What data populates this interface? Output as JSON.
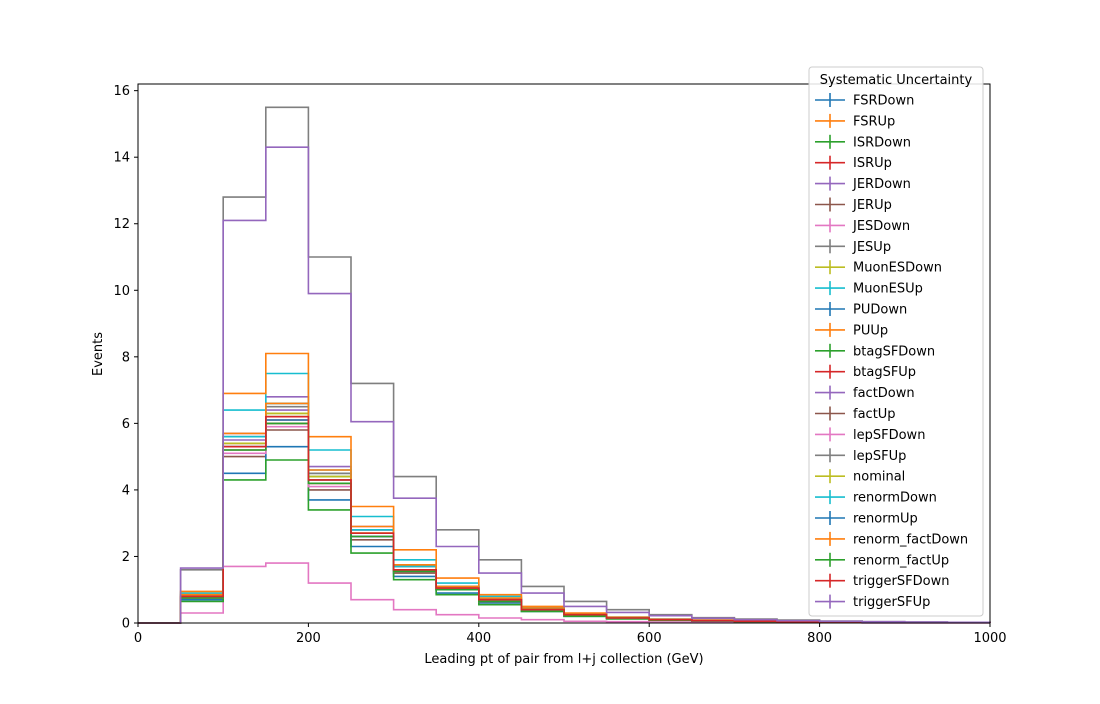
{
  "chart_data": {
    "type": "line",
    "title": "",
    "xlabel": "Leading pt of pair from l+j collection (GeV)",
    "ylabel": "Events",
    "xlim": [
      0,
      1000
    ],
    "ylim": [
      0,
      16.2
    ],
    "xticks": [
      "0",
      "200",
      "400",
      "600",
      "800",
      "1000"
    ],
    "yticks": [
      "0",
      "2",
      "4",
      "6",
      "8",
      "10",
      "12",
      "14",
      "16"
    ],
    "grid": false,
    "legend_title": "Systematic Uncertainty",
    "legend_placement": "upper-right",
    "bin_edges": [
      0,
      50,
      100,
      150,
      200,
      250,
      300,
      350,
      400,
      450,
      500,
      550,
      600,
      650,
      700,
      750,
      800,
      850,
      900,
      950,
      1000
    ],
    "series": [
      {
        "name": "FSRDown",
        "color": "#1f77b4",
        "values": [
          0,
          0.8,
          5.6,
          6.6,
          4.4,
          2.8,
          1.6,
          1.1,
          0.7,
          0.4,
          0.25,
          0.15,
          0.1,
          0.08,
          0.05,
          0.04,
          0.03,
          0.02,
          0.01,
          0.01
        ]
      },
      {
        "name": "FSRUp",
        "color": "#ff7f0e",
        "values": [
          0,
          0.8,
          5.4,
          6.2,
          4.3,
          2.7,
          1.6,
          1.1,
          0.7,
          0.4,
          0.25,
          0.15,
          0.1,
          0.08,
          0.05,
          0.04,
          0.03,
          0.02,
          0.01,
          0.01
        ]
      },
      {
        "name": "ISRDown",
        "color": "#2ca02c",
        "values": [
          0,
          0.75,
          5.3,
          6.2,
          4.5,
          2.6,
          1.6,
          1.0,
          0.7,
          0.4,
          0.25,
          0.15,
          0.1,
          0.07,
          0.05,
          0.04,
          0.03,
          0.02,
          0.01,
          0.01
        ]
      },
      {
        "name": "ISRUp",
        "color": "#d62728",
        "values": [
          0,
          0.8,
          5.4,
          6.0,
          4.2,
          2.6,
          1.6,
          1.0,
          0.7,
          0.4,
          0.25,
          0.15,
          0.1,
          0.07,
          0.05,
          0.04,
          0.03,
          0.02,
          0.01,
          0.01
        ]
      },
      {
        "name": "JERDown",
        "color": "#9467bd",
        "values": [
          0,
          0.85,
          5.7,
          6.8,
          4.7,
          2.9,
          1.7,
          1.1,
          0.7,
          0.45,
          0.25,
          0.15,
          0.1,
          0.08,
          0.05,
          0.04,
          0.03,
          0.02,
          0.01,
          0.01
        ]
      },
      {
        "name": "JERUp",
        "color": "#8c564b",
        "values": [
          0,
          0.75,
          5.0,
          5.8,
          4.0,
          2.5,
          1.5,
          1.0,
          0.65,
          0.4,
          0.25,
          0.15,
          0.1,
          0.07,
          0.05,
          0.04,
          0.03,
          0.02,
          0.01,
          0.01
        ]
      },
      {
        "name": "JESDown",
        "color": "#e377c2",
        "values": [
          0,
          0.3,
          1.7,
          1.8,
          1.2,
          0.7,
          0.4,
          0.25,
          0.15,
          0.1,
          0.05,
          0.04,
          0.03,
          0.02,
          0.01,
          0.01,
          0.01,
          0,
          0,
          0
        ]
      },
      {
        "name": "JESUp",
        "color": "#7f7f7f",
        "values": [
          0,
          1.6,
          12.8,
          15.5,
          11.0,
          7.2,
          4.4,
          2.8,
          1.9,
          1.1,
          0.65,
          0.4,
          0.25,
          0.16,
          0.12,
          0.09,
          0.06,
          0.04,
          0.03,
          0.02
        ]
      },
      {
        "name": "MuonESDown",
        "color": "#bcbd22",
        "values": [
          0,
          0.8,
          5.4,
          6.3,
          4.4,
          2.7,
          1.6,
          1.0,
          0.7,
          0.4,
          0.25,
          0.15,
          0.1,
          0.07,
          0.05,
          0.04,
          0.03,
          0.02,
          0.01,
          0.01
        ]
      },
      {
        "name": "MuonESUp",
        "color": "#17becf",
        "values": [
          0,
          0.9,
          6.4,
          7.5,
          5.2,
          3.2,
          1.9,
          1.2,
          0.8,
          0.45,
          0.28,
          0.17,
          0.11,
          0.08,
          0.06,
          0.04,
          0.03,
          0.02,
          0.01,
          0.01
        ]
      },
      {
        "name": "PUDown",
        "color": "#1f77b4",
        "values": [
          0,
          0.7,
          4.5,
          5.3,
          3.7,
          2.3,
          1.4,
          0.9,
          0.6,
          0.35,
          0.2,
          0.13,
          0.09,
          0.06,
          0.04,
          0.03,
          0.02,
          0.02,
          0.01,
          0.01
        ]
      },
      {
        "name": "PUUp",
        "color": "#ff7f0e",
        "values": [
          0,
          0.95,
          6.9,
          8.1,
          5.6,
          3.5,
          2.2,
          1.35,
          0.85,
          0.5,
          0.3,
          0.18,
          0.12,
          0.09,
          0.06,
          0.05,
          0.03,
          0.02,
          0.02,
          0.01
        ]
      },
      {
        "name": "btagSFDown",
        "color": "#2ca02c",
        "values": [
          0,
          0.65,
          4.3,
          4.9,
          3.4,
          2.1,
          1.3,
          0.85,
          0.55,
          0.35,
          0.2,
          0.12,
          0.08,
          0.06,
          0.04,
          0.03,
          0.02,
          0.02,
          0.01,
          0.01
        ]
      },
      {
        "name": "btagSFUp",
        "color": "#d62728",
        "values": [
          0,
          0.75,
          5.3,
          6.1,
          4.2,
          2.6,
          1.6,
          1.0,
          0.65,
          0.4,
          0.25,
          0.15,
          0.1,
          0.07,
          0.05,
          0.04,
          0.03,
          0.02,
          0.01,
          0.01
        ]
      },
      {
        "name": "factDown",
        "color": "#9467bd",
        "values": [
          0,
          0.8,
          5.5,
          6.4,
          4.5,
          2.8,
          1.7,
          1.05,
          0.7,
          0.4,
          0.25,
          0.15,
          0.1,
          0.07,
          0.05,
          0.04,
          0.03,
          0.02,
          0.01,
          0.01
        ]
      },
      {
        "name": "factUp",
        "color": "#8c564b",
        "values": [
          0,
          0.75,
          5.2,
          6.0,
          4.2,
          2.6,
          1.55,
          1.0,
          0.65,
          0.4,
          0.25,
          0.15,
          0.1,
          0.07,
          0.05,
          0.04,
          0.03,
          0.02,
          0.01,
          0.01
        ]
      },
      {
        "name": "lepSFDown",
        "color": "#e377c2",
        "values": [
          0,
          0.75,
          5.1,
          5.9,
          4.1,
          2.6,
          1.55,
          1.0,
          0.65,
          0.4,
          0.25,
          0.15,
          0.1,
          0.07,
          0.05,
          0.04,
          0.03,
          0.02,
          0.01,
          0.01
        ]
      },
      {
        "name": "lepSFUp",
        "color": "#7f7f7f",
        "values": [
          0,
          0.8,
          5.6,
          6.5,
          4.5,
          2.8,
          1.7,
          1.1,
          0.7,
          0.45,
          0.27,
          0.16,
          0.1,
          0.08,
          0.05,
          0.04,
          0.03,
          0.02,
          0.01,
          0.01
        ]
      },
      {
        "name": "nominal",
        "color": "#bcbd22",
        "values": [
          0,
          0.8,
          5.4,
          6.3,
          4.4,
          2.7,
          1.6,
          1.05,
          0.7,
          0.4,
          0.25,
          0.15,
          0.1,
          0.07,
          0.05,
          0.04,
          0.03,
          0.02,
          0.01,
          0.01
        ]
      },
      {
        "name": "renormDown",
        "color": "#17becf",
        "values": [
          0,
          0.85,
          5.6,
          6.6,
          4.6,
          2.8,
          1.7,
          1.1,
          0.7,
          0.45,
          0.26,
          0.16,
          0.1,
          0.08,
          0.05,
          0.04,
          0.03,
          0.02,
          0.01,
          0.01
        ]
      },
      {
        "name": "renormUp",
        "color": "#1f77b4",
        "values": [
          0,
          0.8,
          5.3,
          6.1,
          4.3,
          2.6,
          1.6,
          1.0,
          0.7,
          0.4,
          0.25,
          0.15,
          0.1,
          0.07,
          0.05,
          0.04,
          0.03,
          0.02,
          0.01,
          0.01
        ]
      },
      {
        "name": "renorm_factDown",
        "color": "#ff7f0e",
        "values": [
          0,
          0.85,
          5.7,
          6.6,
          4.6,
          2.9,
          1.75,
          1.1,
          0.75,
          0.45,
          0.27,
          0.16,
          0.1,
          0.08,
          0.05,
          0.04,
          0.03,
          0.02,
          0.01,
          0.01
        ]
      },
      {
        "name": "renorm_factUp",
        "color": "#2ca02c",
        "values": [
          0,
          0.75,
          5.2,
          6.0,
          4.2,
          2.6,
          1.55,
          1.0,
          0.65,
          0.4,
          0.24,
          0.15,
          0.1,
          0.07,
          0.05,
          0.04,
          0.03,
          0.02,
          0.01,
          0.01
        ]
      },
      {
        "name": "triggerSFDown",
        "color": "#d62728",
        "values": [
          0,
          0.8,
          5.3,
          6.2,
          4.3,
          2.7,
          1.6,
          1.05,
          0.7,
          0.4,
          0.25,
          0.15,
          0.1,
          0.07,
          0.05,
          0.04,
          0.03,
          0.02,
          0.01,
          0.01
        ]
      },
      {
        "name": "triggerSFUp",
        "color": "#9467bd",
        "values": [
          0,
          1.65,
          12.1,
          14.3,
          9.9,
          6.05,
          3.75,
          2.3,
          1.5,
          0.9,
          0.5,
          0.32,
          0.22,
          0.14,
          0.1,
          0.07,
          0.05,
          0.04,
          0.03,
          0.02
        ]
      }
    ]
  }
}
